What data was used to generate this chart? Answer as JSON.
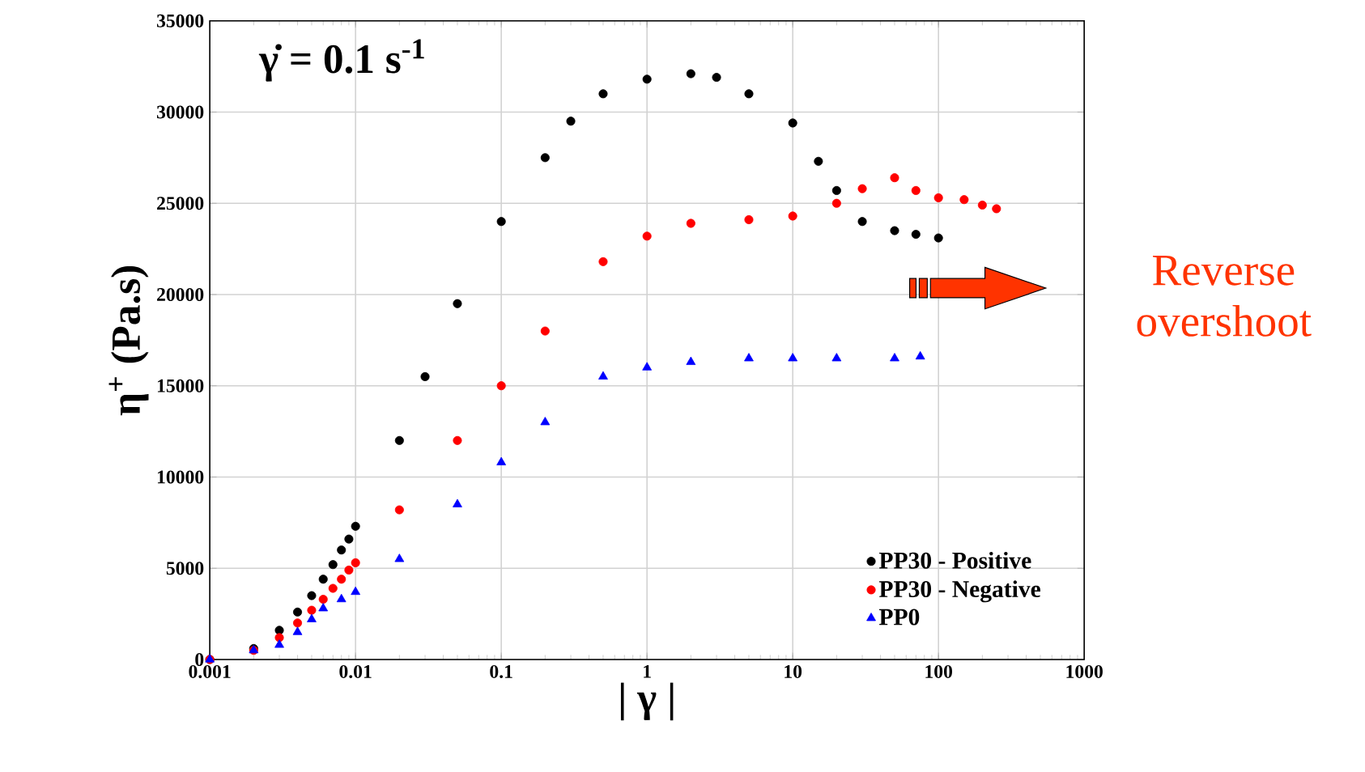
{
  "chart_data": {
    "type": "scatter",
    "xlabel": "| γ |",
    "ylabel": "η$^{+}$ (Pa.s)",
    "log": "x",
    "grid": true,
    "legend": "bottom right",
    "xlim": [
      0.001,
      1000
    ],
    "xticks": [
      0.001,
      0.01,
      0.1,
      1,
      10,
      100,
      1000
    ],
    "ylim": [
      0,
      35000
    ],
    "yticks": [
      0,
      5000,
      10000,
      15000,
      20000,
      25000,
      30000,
      35000
    ],
    "annotations": [
      "γ̇ = 0.1 s$^{-1}$",
      "Reverse overshoot"
    ],
    "series": [
      {
        "name": "PP30 - Positive",
        "color": "#000000",
        "marker": "circle",
        "x": [
          0.001,
          0.002,
          0.003,
          0.004,
          0.005,
          0.006,
          0.007,
          0.008,
          0.009,
          0.01,
          0.02,
          0.03,
          0.05,
          0.1,
          0.2,
          0.3,
          0.5,
          1,
          2,
          3,
          5,
          10,
          15,
          20,
          30,
          50,
          70,
          100
        ],
        "values": [
          0,
          600,
          1600,
          2600,
          3500,
          4400,
          5200,
          6000,
          6600,
          7300,
          12000,
          15500,
          19500,
          24000,
          27500,
          29500,
          31000,
          31800,
          32100,
          31900,
          31000,
          29400,
          27300,
          25700,
          24000,
          23500,
          23300,
          23100
        ]
      },
      {
        "name": "PP30 - Negative",
        "color": "#ff0000",
        "marker": "circle",
        "x": [
          0.001,
          0.002,
          0.003,
          0.004,
          0.005,
          0.006,
          0.007,
          0.008,
          0.009,
          0.01,
          0.02,
          0.05,
          0.1,
          0.2,
          0.5,
          1,
          2,
          5,
          10,
          20,
          30,
          50,
          70,
          100,
          150,
          200,
          250
        ],
        "values": [
          0,
          500,
          1200,
          2000,
          2700,
          3300,
          3900,
          4400,
          4900,
          5300,
          8200,
          12000,
          15000,
          18000,
          21800,
          23200,
          23900,
          24100,
          24300,
          25000,
          25800,
          26400,
          25700,
          25300,
          25200,
          24900,
          24700
        ]
      },
      {
        "name": "PP0",
        "color": "#0000ff",
        "marker": "triangle",
        "x": [
          0.001,
          0.002,
          0.003,
          0.004,
          0.005,
          0.006,
          0.008,
          0.01,
          0.02,
          0.05,
          0.1,
          0.2,
          0.5,
          1,
          2,
          5,
          10,
          20,
          50,
          75
        ],
        "values": [
          0,
          500,
          800,
          1500,
          2200,
          2800,
          3300,
          3700,
          5500,
          8500,
          10800,
          13000,
          15500,
          16000,
          16300,
          16500,
          16500,
          16500,
          16500,
          16600
        ]
      }
    ]
  }
}
